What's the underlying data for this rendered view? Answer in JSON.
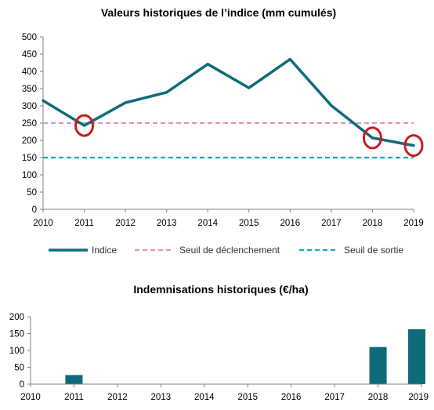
{
  "chart_data": [
    {
      "type": "line",
      "title": "Valeurs historiques de l’indice (mm cumulés)",
      "x": [
        2010,
        2011,
        2012,
        2013,
        2014,
        2015,
        2016,
        2017,
        2018,
        2019
      ],
      "ylim": [
        0,
        500
      ],
      "yticks": [
        0,
        50,
        100,
        150,
        200,
        250,
        300,
        350,
        400,
        450,
        500
      ],
      "grid": false,
      "legend_position": "bottom",
      "series": [
        {
          "name": "Indice",
          "values": [
            315,
            243,
            309,
            339,
            421,
            352,
            435,
            301,
            207,
            185
          ],
          "color": "#0f6b7a",
          "style": "solid"
        },
        {
          "name": "Seuil de déclenchement",
          "values": [
            250,
            250,
            250,
            250,
            250,
            250,
            250,
            250,
            250,
            250
          ],
          "color": "#e796ad",
          "style": "dashed"
        },
        {
          "name": "Seuil de sortie",
          "values": [
            150,
            150,
            150,
            150,
            150,
            150,
            150,
            150,
            150,
            150
          ],
          "color": "#1ba3c6",
          "style": "dashed"
        }
      ],
      "annotations": [
        {
          "type": "circle",
          "x": 2011,
          "y": 243,
          "color": "#c81e1e"
        },
        {
          "type": "circle",
          "x": 2018,
          "y": 207,
          "color": "#c81e1e"
        },
        {
          "type": "circle",
          "x": 2019,
          "y": 185,
          "color": "#c81e1e"
        }
      ]
    },
    {
      "type": "bar",
      "title": "Indemnisations historiques (€/ha)",
      "categories": [
        2010,
        2011,
        2012,
        2013,
        2014,
        2015,
        2016,
        2017,
        2018,
        2019
      ],
      "values": [
        0,
        27,
        0,
        0,
        0,
        0,
        0,
        0,
        110,
        163
      ],
      "ylim": [
        0,
        200
      ],
      "yticks": [
        0,
        50,
        100,
        150,
        200
      ],
      "color": "#0f6b7a",
      "grid": false
    }
  ]
}
